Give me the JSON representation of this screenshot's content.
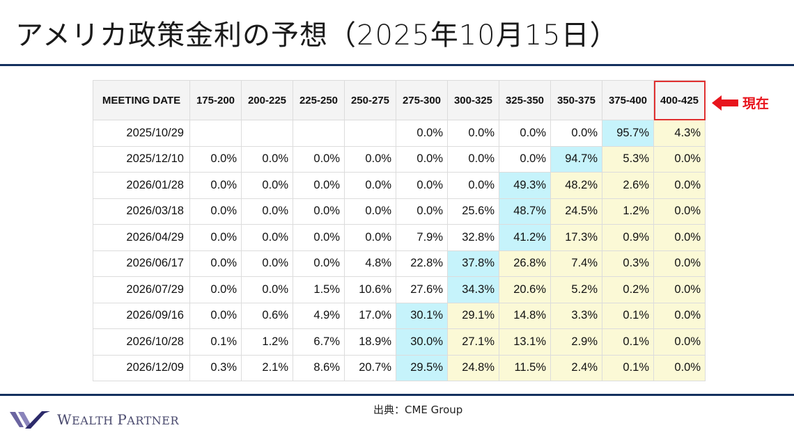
{
  "title": "アメリカ政策金利の予想（2025年10月15日）",
  "colors": {
    "rule": "#14305e",
    "highlight_max": "#c6f3fb",
    "highlight_tail": "#fbf9d6",
    "current_marker": "#e8141c"
  },
  "table": {
    "header": {
      "date_col": "MEETING DATE",
      "ranges": [
        "175-200",
        "200-225",
        "225-250",
        "250-275",
        "275-300",
        "300-325",
        "325-350",
        "350-375",
        "375-400",
        "400-425"
      ]
    },
    "current_range_index": 9,
    "rows": [
      {
        "date": "2025/10/29",
        "values": [
          "",
          "",
          "",
          "",
          "0.0%",
          "0.0%",
          "0.0%",
          "0.0%",
          "95.7%",
          "4.3%"
        ],
        "max_index": 8
      },
      {
        "date": "2025/12/10",
        "values": [
          "0.0%",
          "0.0%",
          "0.0%",
          "0.0%",
          "0.0%",
          "0.0%",
          "0.0%",
          "94.7%",
          "5.3%",
          "0.0%"
        ],
        "max_index": 7
      },
      {
        "date": "2026/01/28",
        "values": [
          "0.0%",
          "0.0%",
          "0.0%",
          "0.0%",
          "0.0%",
          "0.0%",
          "49.3%",
          "48.2%",
          "2.6%",
          "0.0%"
        ],
        "max_index": 6
      },
      {
        "date": "2026/03/18",
        "values": [
          "0.0%",
          "0.0%",
          "0.0%",
          "0.0%",
          "0.0%",
          "25.6%",
          "48.7%",
          "24.5%",
          "1.2%",
          "0.0%"
        ],
        "max_index": 6
      },
      {
        "date": "2026/04/29",
        "values": [
          "0.0%",
          "0.0%",
          "0.0%",
          "0.0%",
          "7.9%",
          "32.8%",
          "41.2%",
          "17.3%",
          "0.9%",
          "0.0%"
        ],
        "max_index": 6
      },
      {
        "date": "2026/06/17",
        "values": [
          "0.0%",
          "0.0%",
          "0.0%",
          "4.8%",
          "22.8%",
          "37.8%",
          "26.8%",
          "7.4%",
          "0.3%",
          "0.0%"
        ],
        "max_index": 5
      },
      {
        "date": "2026/07/29",
        "values": [
          "0.0%",
          "0.0%",
          "1.5%",
          "10.6%",
          "27.6%",
          "34.3%",
          "20.6%",
          "5.2%",
          "0.2%",
          "0.0%"
        ],
        "max_index": 5
      },
      {
        "date": "2026/09/16",
        "values": [
          "0.0%",
          "0.6%",
          "4.9%",
          "17.0%",
          "30.1%",
          "29.1%",
          "14.8%",
          "3.3%",
          "0.1%",
          "0.0%"
        ],
        "max_index": 4
      },
      {
        "date": "2026/10/28",
        "values": [
          "0.1%",
          "1.2%",
          "6.7%",
          "18.9%",
          "30.0%",
          "27.1%",
          "13.1%",
          "2.9%",
          "0.1%",
          "0.0%"
        ],
        "max_index": 4
      },
      {
        "date": "2026/12/09",
        "values": [
          "0.3%",
          "2.1%",
          "8.6%",
          "20.7%",
          "29.5%",
          "24.8%",
          "11.5%",
          "2.4%",
          "0.1%",
          "0.0%"
        ],
        "max_index": 4
      }
    ]
  },
  "current_marker": {
    "label": "現在",
    "icon": "left-arrow-icon"
  },
  "footer": {
    "source": "出典：CME Group",
    "logo_text_first": "W",
    "logo_text_rest1": "EALTH ",
    "logo_text_second": "P",
    "logo_text_rest2": "ARTNER"
  }
}
